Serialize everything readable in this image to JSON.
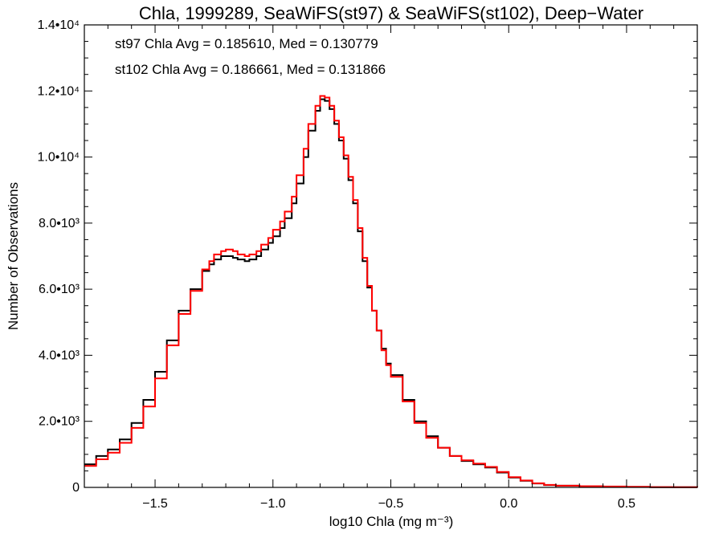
{
  "chart_data": {
    "type": "line",
    "title": "Chla, 1999289, SeaWiFS(st97) & SeaWiFS(st102), Deep−Water",
    "xlabel": "log10 Chla (mg m⁻³)",
    "ylabel": "Number of Observations",
    "xlim": [
      -1.8,
      0.8
    ],
    "ylim": [
      0,
      14000
    ],
    "x_ticks": [
      -1.5,
      -1.0,
      -0.5,
      0.0,
      0.5
    ],
    "x_tick_labels": [
      "−1.5",
      "−1.0",
      "−0.5",
      "0.0",
      "0.5"
    ],
    "y_ticks": [
      0,
      2000,
      4000,
      6000,
      8000,
      10000,
      12000,
      14000
    ],
    "y_tick_labels": [
      "0",
      "2.0•10³",
      "4.0•10³",
      "6.0•10³",
      "8.0•10³",
      "1.0•10⁴",
      "1.2•10⁴",
      "1.4•10⁴"
    ],
    "grid": false,
    "annotations": [
      {
        "text": "st97 Chla Avg = 0.185610, Med = 0.130779",
        "color": "#000000"
      },
      {
        "text": "st102 Chla Avg = 0.186661, Med = 0.131866",
        "color": "#ff0000"
      }
    ],
    "series": [
      {
        "color": "#000000",
        "step": true,
        "points": [
          [
            -1.8,
            700
          ],
          [
            -1.75,
            950
          ],
          [
            -1.7,
            1150
          ],
          [
            -1.65,
            1450
          ],
          [
            -1.6,
            1950
          ],
          [
            -1.55,
            2650
          ],
          [
            -1.5,
            3500
          ],
          [
            -1.45,
            4450
          ],
          [
            -1.4,
            5350
          ],
          [
            -1.35,
            6000
          ],
          [
            -1.3,
            6550
          ],
          [
            -1.27,
            6750
          ],
          [
            -1.25,
            6900
          ],
          [
            -1.22,
            7000
          ],
          [
            -1.2,
            7000
          ],
          [
            -1.17,
            6950
          ],
          [
            -1.15,
            6900
          ],
          [
            -1.12,
            6850
          ],
          [
            -1.1,
            6900
          ],
          [
            -1.07,
            7000
          ],
          [
            -1.05,
            7200
          ],
          [
            -1.02,
            7400
          ],
          [
            -1.0,
            7600
          ],
          [
            -0.97,
            7850
          ],
          [
            -0.95,
            8150
          ],
          [
            -0.92,
            8600
          ],
          [
            -0.9,
            9200
          ],
          [
            -0.87,
            10000
          ],
          [
            -0.85,
            10800
          ],
          [
            -0.82,
            11400
          ],
          [
            -0.8,
            11750
          ],
          [
            -0.78,
            11700
          ],
          [
            -0.76,
            11450
          ],
          [
            -0.74,
            11000
          ],
          [
            -0.72,
            10500
          ],
          [
            -0.7,
            9950
          ],
          [
            -0.68,
            9300
          ],
          [
            -0.66,
            8600
          ],
          [
            -0.64,
            7750
          ],
          [
            -0.62,
            6850
          ],
          [
            -0.6,
            6050
          ],
          [
            -0.58,
            5350
          ],
          [
            -0.56,
            4750
          ],
          [
            -0.54,
            4200
          ],
          [
            -0.52,
            3750
          ],
          [
            -0.5,
            3400
          ],
          [
            -0.45,
            2650
          ],
          [
            -0.4,
            2000
          ],
          [
            -0.35,
            1550
          ],
          [
            -0.3,
            1200
          ],
          [
            -0.25,
            950
          ],
          [
            -0.2,
            800
          ],
          [
            -0.15,
            700
          ],
          [
            -0.1,
            600
          ],
          [
            -0.05,
            450
          ],
          [
            0.0,
            300
          ],
          [
            0.05,
            200
          ],
          [
            0.1,
            120
          ],
          [
            0.15,
            70
          ],
          [
            0.2,
            50
          ],
          [
            0.3,
            35
          ],
          [
            0.4,
            25
          ],
          [
            0.5,
            15
          ],
          [
            0.6,
            8
          ],
          [
            0.7,
            5
          ],
          [
            0.8,
            3
          ]
        ]
      },
      {
        "color": "#ff0000",
        "step": true,
        "points": [
          [
            -1.8,
            650
          ],
          [
            -1.75,
            850
          ],
          [
            -1.7,
            1050
          ],
          [
            -1.65,
            1350
          ],
          [
            -1.6,
            1800
          ],
          [
            -1.55,
            2450
          ],
          [
            -1.5,
            3300
          ],
          [
            -1.45,
            4300
          ],
          [
            -1.4,
            5250
          ],
          [
            -1.35,
            5950
          ],
          [
            -1.3,
            6600
          ],
          [
            -1.27,
            6850
          ],
          [
            -1.25,
            7050
          ],
          [
            -1.22,
            7150
          ],
          [
            -1.2,
            7200
          ],
          [
            -1.17,
            7150
          ],
          [
            -1.15,
            7050
          ],
          [
            -1.12,
            7000
          ],
          [
            -1.1,
            7050
          ],
          [
            -1.07,
            7150
          ],
          [
            -1.05,
            7350
          ],
          [
            -1.02,
            7550
          ],
          [
            -1.0,
            7800
          ],
          [
            -0.97,
            8050
          ],
          [
            -0.95,
            8350
          ],
          [
            -0.92,
            8800
          ],
          [
            -0.9,
            9450
          ],
          [
            -0.87,
            10250
          ],
          [
            -0.85,
            11000
          ],
          [
            -0.82,
            11550
          ],
          [
            -0.8,
            11850
          ],
          [
            -0.78,
            11800
          ],
          [
            -0.76,
            11550
          ],
          [
            -0.74,
            11100
          ],
          [
            -0.72,
            10600
          ],
          [
            -0.7,
            10050
          ],
          [
            -0.68,
            9400
          ],
          [
            -0.66,
            8700
          ],
          [
            -0.64,
            7850
          ],
          [
            -0.62,
            6950
          ],
          [
            -0.6,
            6100
          ],
          [
            -0.58,
            5350
          ],
          [
            -0.56,
            4750
          ],
          [
            -0.54,
            4150
          ],
          [
            -0.52,
            3700
          ],
          [
            -0.5,
            3350
          ],
          [
            -0.45,
            2600
          ],
          [
            -0.4,
            1950
          ],
          [
            -0.35,
            1500
          ],
          [
            -0.3,
            1200
          ],
          [
            -0.25,
            950
          ],
          [
            -0.2,
            820
          ],
          [
            -0.15,
            720
          ],
          [
            -0.1,
            620
          ],
          [
            -0.05,
            470
          ],
          [
            0.0,
            310
          ],
          [
            0.05,
            210
          ],
          [
            0.1,
            125
          ],
          [
            0.15,
            75
          ],
          [
            0.2,
            52
          ],
          [
            0.3,
            36
          ],
          [
            0.4,
            26
          ],
          [
            0.5,
            16
          ],
          [
            0.6,
            9
          ],
          [
            0.7,
            5
          ],
          [
            0.8,
            3
          ]
        ]
      }
    ]
  }
}
